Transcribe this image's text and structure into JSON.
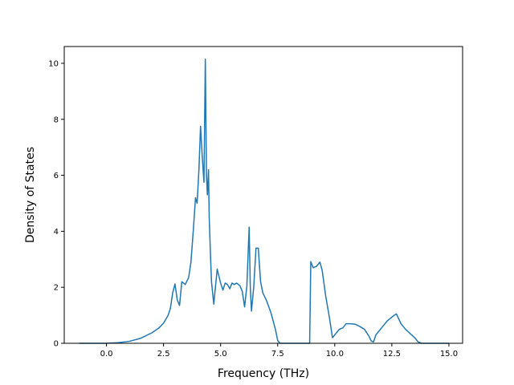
{
  "chart_data": {
    "type": "line",
    "title": "",
    "xlabel": "Frequency (THz)",
    "ylabel": "Density of States",
    "xlim": [
      -1.85,
      15.6
    ],
    "ylim": [
      0,
      10.6
    ],
    "xticks": [
      0,
      2.5,
      5,
      7.5,
      10,
      12.5,
      15
    ],
    "xtick_labels": [
      "0.0",
      "2.5",
      "5.0",
      "7.5",
      "10.0",
      "12.5",
      "15.0"
    ],
    "yticks": [
      0,
      2,
      4,
      6,
      8,
      10
    ],
    "ytick_labels": [
      "0",
      "2",
      "4",
      "6",
      "8",
      "10"
    ],
    "grid": false,
    "legend": "none",
    "line_color": "#1f77b4",
    "series": [
      {
        "x": [
          -1.2,
          -0.5,
          0.0,
          0.5,
          1.0,
          1.5,
          2.0,
          2.3,
          2.5,
          2.7,
          2.8,
          2.9,
          3.0,
          3.1,
          3.2,
          3.3,
          3.45,
          3.6,
          3.7,
          3.8,
          3.9,
          3.97,
          4.05,
          4.12,
          4.2,
          4.27,
          4.33,
          4.38,
          4.42,
          4.47,
          4.5,
          4.55,
          4.6,
          4.7,
          4.85,
          5.0,
          5.1,
          5.2,
          5.3,
          5.4,
          5.5,
          5.6,
          5.7,
          5.85,
          5.95,
          6.05,
          6.15,
          6.25,
          6.3,
          6.35,
          6.45,
          6.55,
          6.65,
          6.75,
          6.85,
          7.0,
          7.2,
          7.4,
          7.5,
          7.6,
          7.7,
          8.0,
          8.5,
          8.9,
          8.95,
          9.05,
          9.2,
          9.35,
          9.45,
          9.6,
          9.75,
          9.9,
          10.0,
          10.2,
          10.35,
          10.5,
          10.7,
          10.9,
          11.1,
          11.3,
          11.5,
          11.6,
          11.7,
          11.8,
          12.0,
          12.3,
          12.6,
          12.7,
          12.9,
          13.1,
          13.3,
          13.5,
          13.65,
          13.8,
          14.0,
          14.5,
          15.0
        ],
        "y": [
          0.0,
          0.0,
          0.0,
          0.02,
          0.07,
          0.18,
          0.38,
          0.55,
          0.72,
          1.0,
          1.25,
          1.8,
          2.12,
          1.55,
          1.35,
          2.2,
          2.1,
          2.35,
          2.9,
          4.0,
          5.2,
          5.0,
          6.2,
          7.75,
          6.6,
          5.75,
          10.15,
          6.0,
          5.3,
          6.2,
          4.5,
          3.3,
          2.2,
          1.4,
          2.65,
          2.15,
          1.9,
          2.15,
          2.1,
          1.95,
          2.15,
          2.1,
          2.15,
          2.05,
          1.85,
          1.3,
          2.05,
          4.15,
          2.0,
          1.15,
          2.0,
          3.4,
          3.4,
          2.2,
          1.8,
          1.55,
          1.1,
          0.5,
          0.1,
          0.0,
          0.0,
          0.0,
          0.0,
          0.0,
          2.92,
          2.7,
          2.75,
          2.9,
          2.6,
          1.7,
          1.0,
          0.2,
          0.3,
          0.5,
          0.55,
          0.7,
          0.7,
          0.68,
          0.6,
          0.5,
          0.25,
          0.08,
          0.05,
          0.3,
          0.5,
          0.8,
          1.0,
          1.05,
          0.7,
          0.5,
          0.35,
          0.2,
          0.05,
          0.0,
          0.0,
          0.0,
          0.0
        ]
      }
    ]
  }
}
